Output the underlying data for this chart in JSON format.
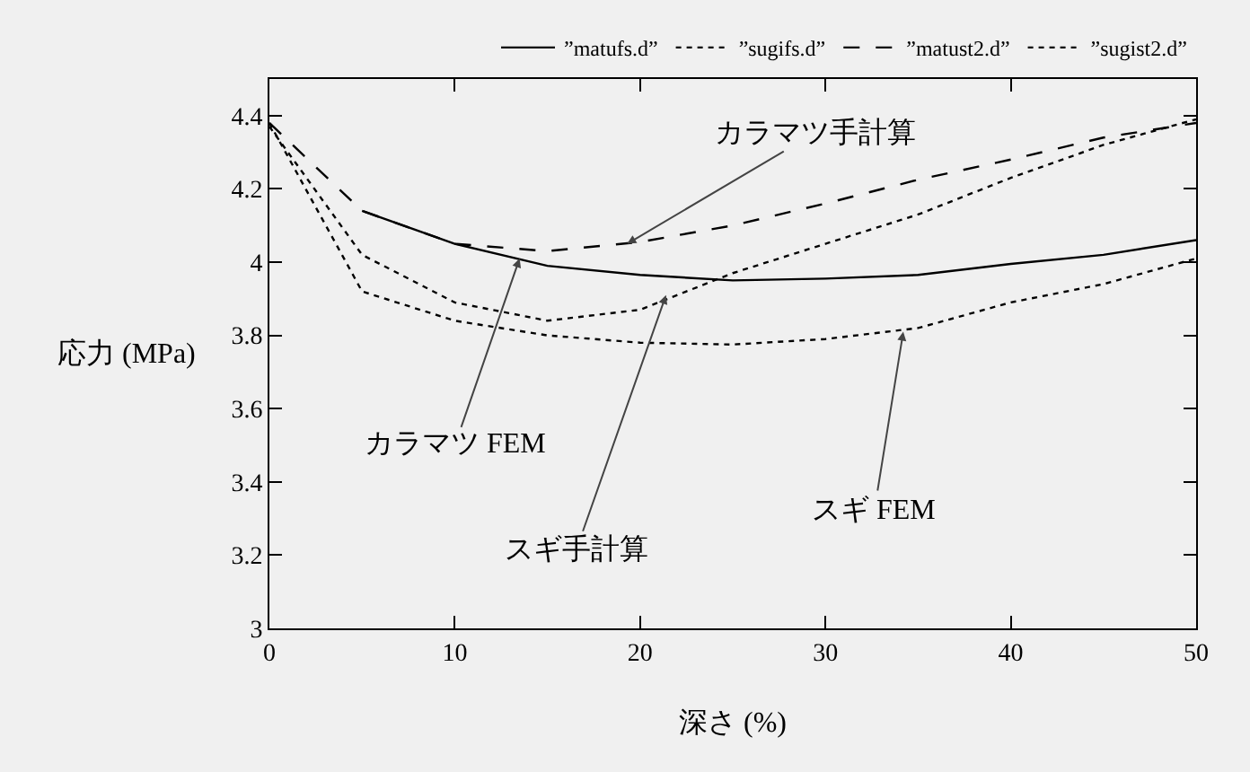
{
  "chart_data": {
    "type": "line",
    "xlabel": "深さ (%)",
    "ylabel": "応力 (MPa)",
    "xlim": [
      0,
      50
    ],
    "xticks": [
      0,
      10,
      20,
      30,
      40,
      50
    ],
    "ylim": [
      3,
      4.5
    ],
    "yticks": [
      3,
      3.2,
      3.4,
      3.6,
      3.8,
      4,
      4.2,
      4.4
    ],
    "grid": false,
    "legend": "top right",
    "marker": "none",
    "series": [
      {
        "name": "”matufs.d”",
        "color": "#000000",
        "line_style": "solid",
        "x": [
          5,
          10,
          15,
          20,
          25,
          30,
          35,
          40,
          45,
          50
        ],
        "values": [
          4.14,
          4.05,
          3.99,
          3.965,
          3.95,
          3.955,
          3.965,
          3.995,
          4.02,
          4.06
        ]
      },
      {
        "name": "”sugifs.d”",
        "color": "#000000",
        "line_style": "dotted",
        "x": [
          0,
          5,
          10,
          15,
          20,
          25,
          30,
          35,
          40,
          45,
          50
        ],
        "values": [
          4.37,
          4.02,
          3.89,
          3.84,
          3.87,
          3.97,
          4.05,
          4.13,
          4.23,
          4.32,
          4.39
        ]
      },
      {
        "name": "”matust2.d”",
        "color": "#000000",
        "line_style": "dashed",
        "x": [
          0,
          5,
          10,
          15,
          20,
          25,
          30,
          35,
          40,
          45,
          50
        ],
        "values": [
          4.38,
          4.14,
          4.05,
          4.03,
          4.055,
          4.1,
          4.16,
          4.225,
          4.28,
          4.34,
          4.38
        ]
      },
      {
        "name": "”sugist2.d”",
        "color": "#000000",
        "line_style": "dotted",
        "x": [
          0,
          5,
          10,
          15,
          20,
          25,
          30,
          35,
          40,
          45,
          50
        ],
        "values": [
          4.38,
          3.92,
          3.84,
          3.8,
          3.78,
          3.775,
          3.79,
          3.82,
          3.89,
          3.94,
          4.01
        ]
      }
    ],
    "annotations": [
      {
        "text": "カラマツ手計算",
        "x": 19.3,
        "y": 4.05
      },
      {
        "text": "カラマツ FEM",
        "x": 13.5,
        "y": 4.01
      },
      {
        "text": "スギ手計算",
        "x": 21.4,
        "y": 3.91
      },
      {
        "text": "スギ FEM",
        "x": 34.2,
        "y": 3.81
      }
    ]
  }
}
